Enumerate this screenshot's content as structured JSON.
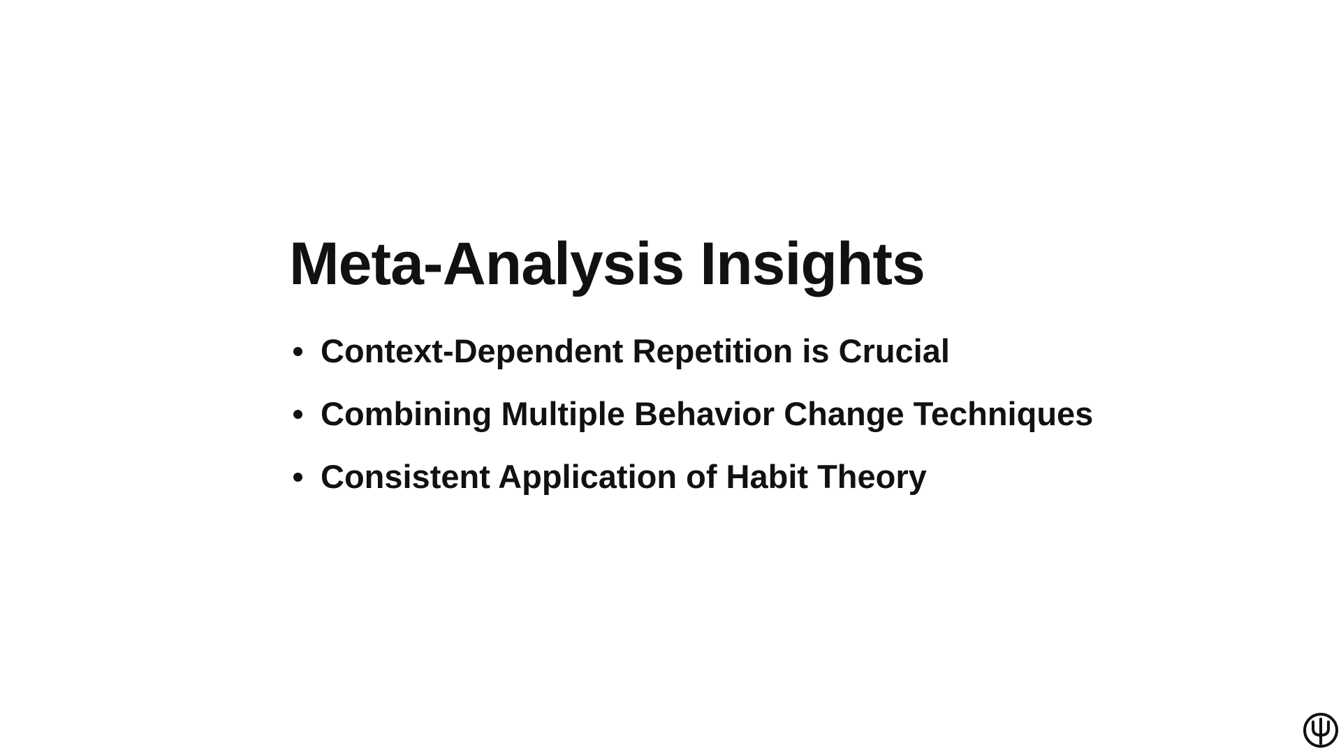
{
  "slide": {
    "title": "Meta-Analysis Insights",
    "bullets": [
      "Context-Dependent Repetition is Crucial",
      "Combining Multiple Behavior Change Techniques",
      "Consistent Application of Habit Theory"
    ],
    "logo_icon": "psi-circle-icon"
  },
  "colors": {
    "background": "#ffffff",
    "text": "#111111"
  }
}
